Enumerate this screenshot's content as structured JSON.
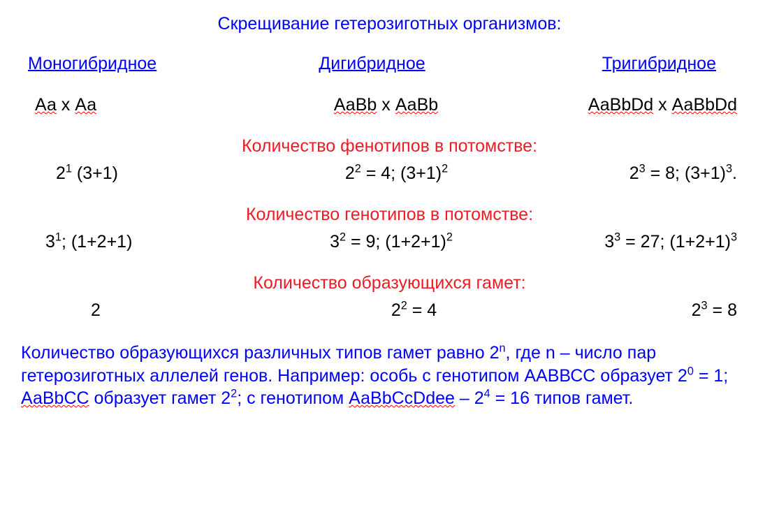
{
  "colors": {
    "blue": "#0000ff",
    "red": "#ed1c24",
    "black": "#000000",
    "wavy": "#ff0000",
    "background": "#ffffff"
  },
  "title": "Скрещивание гетерозиготных организмов:",
  "headers": {
    "mono": "Моногибридное",
    "di": "Дигибридное",
    "tri": "Тригибридное"
  },
  "crosses": {
    "mono": {
      "p1": "Аа",
      "mid": " х ",
      "p2": "Аа"
    },
    "di": {
      "p1": "АаВb",
      "mid": " х ",
      "p2": "АаВb"
    },
    "tri": {
      "p1": "АаВbDd",
      "mid": " х ",
      "p2": "АаВbDd"
    }
  },
  "sections": {
    "phenotypes": "Количество фенотипов в потомстве:",
    "genotypes": "Количество генотипов в потомстве:",
    "gametes": "Количество образующихся гамет:"
  },
  "phen": {
    "mono": {
      "base1": "2",
      "sup1": "1",
      "tail": " (3+1)"
    },
    "di": {
      "base1": "2",
      "sup1": "2",
      "mid": " = 4; (3+1)",
      "sup2": "2"
    },
    "tri": {
      "base1": "2",
      "sup1": "3",
      "mid": " = 8; (3+1)",
      "sup2": "3",
      "dot": "."
    }
  },
  "geno": {
    "mono": {
      "base1": "3",
      "sup1": "1",
      "tail": "; (1+2+1)"
    },
    "di": {
      "base1": "3",
      "sup1": "2",
      "mid": " = 9; (1+2+1)",
      "sup2": "2"
    },
    "tri": {
      "base1": "3",
      "sup1": "3",
      "mid": " = 27; (1+2+1)",
      "sup2": "3"
    }
  },
  "gam": {
    "mono": "2",
    "di": {
      "base": "2",
      "sup": "2",
      "tail": " = 4"
    },
    "tri": {
      "base": "2",
      "sup": "3",
      "tail": " = 8"
    }
  },
  "footer": {
    "t1": "Количество образующихся различных типов гамет равно 2",
    "sup_n": "n",
    "t2": ", где n – число пар гетерозиготных аллелей генов. Например: особь с генотипом ААВВСС образует 2",
    "sup0": "0",
    "t3": " = 1; ",
    "g2": "АаВbСС",
    "t4": " образует гамет 2",
    "sup2": "2",
    "t5": "; с генотипом ",
    "g3": "АаВbСсDdее",
    "t6": " – 2",
    "sup4": "4",
    "t7": " = 16 типов гамет."
  }
}
